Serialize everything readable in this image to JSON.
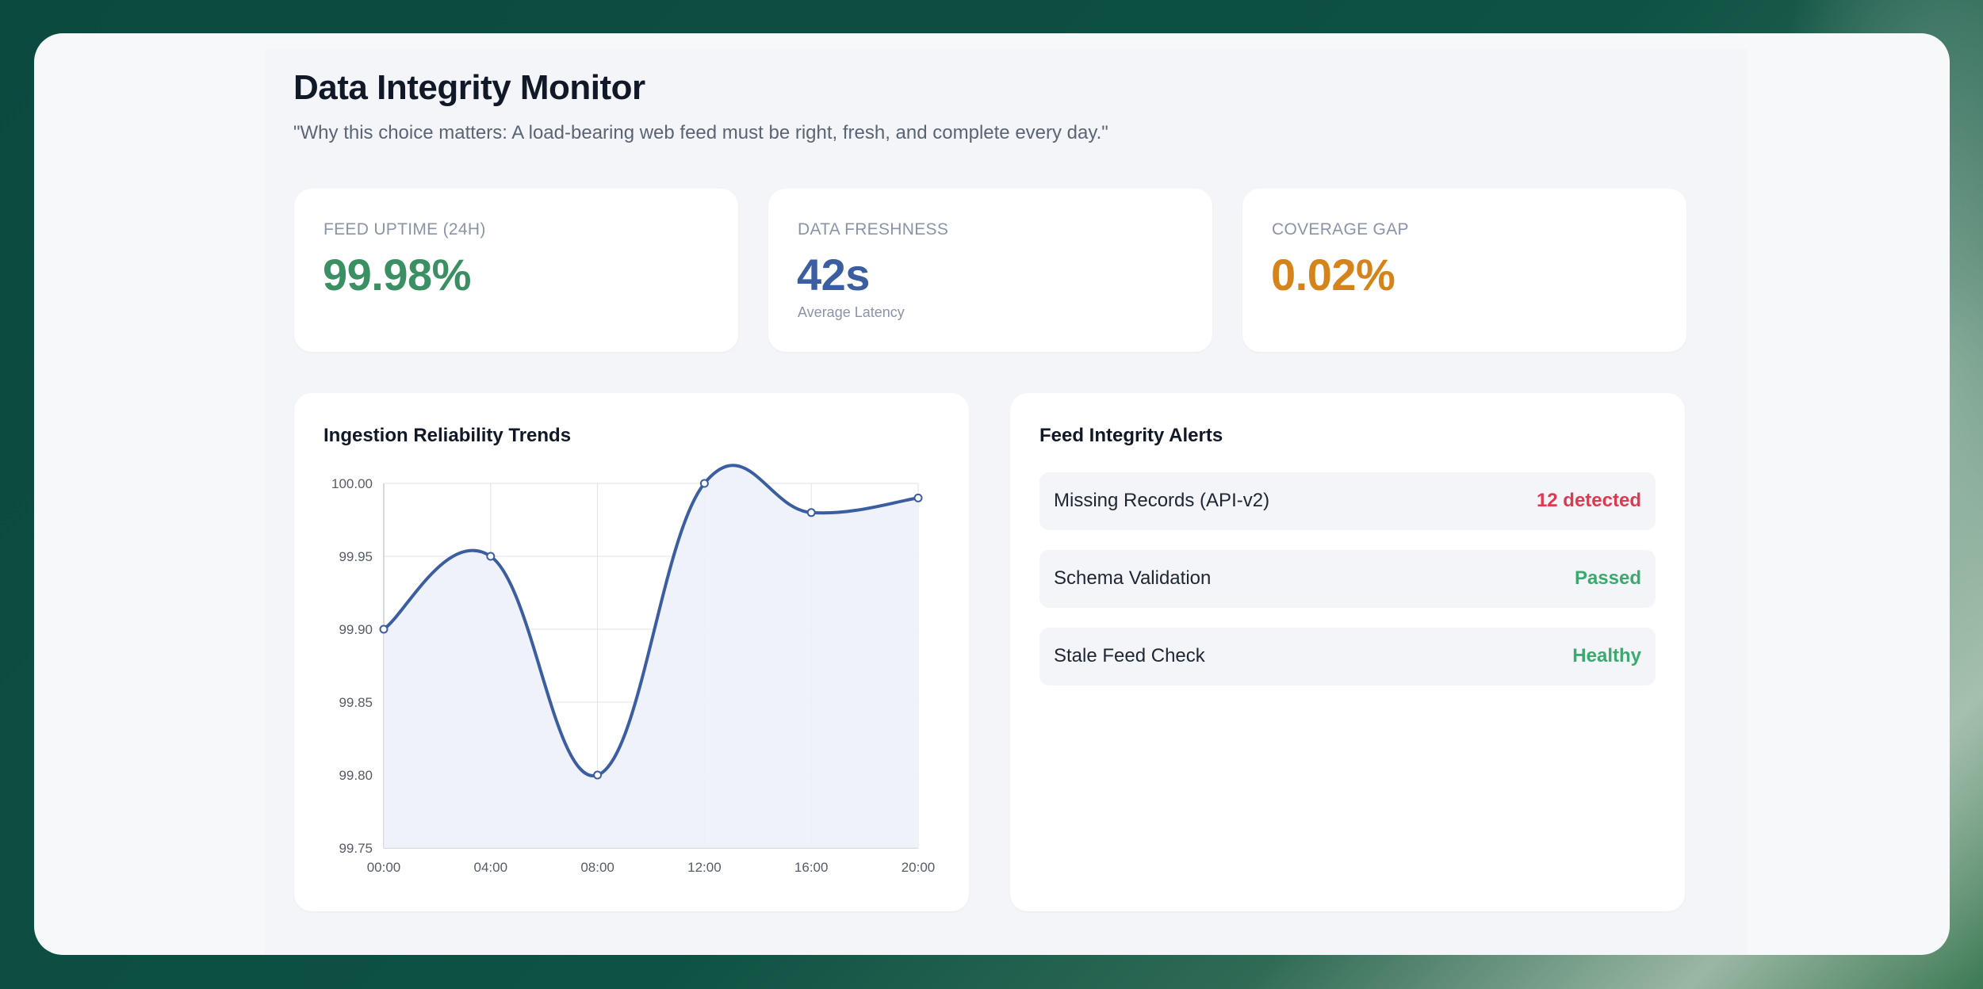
{
  "header": {
    "title": "Data Integrity Monitor",
    "subtitle": "\"Why this choice matters: A load-bearing web feed must be right, fresh, and complete every day.\""
  },
  "kpis": [
    {
      "label": "FEED UPTIME (24H)",
      "value": "99.98%",
      "sub": "",
      "color": "#3a8f63"
    },
    {
      "label": "DATA FRESHNESS",
      "value": "42s",
      "sub": "Average Latency",
      "color": "#3b5ea0"
    },
    {
      "label": "COVERAGE GAP",
      "value": "0.02%",
      "sub": "",
      "color": "#d4841a"
    }
  ],
  "chart_card": {
    "title": "Ingestion Reliability Trends"
  },
  "chart_data": {
    "type": "line",
    "title": "Ingestion Reliability Trends",
    "x": [
      "00:00",
      "04:00",
      "08:00",
      "12:00",
      "16:00",
      "20:00"
    ],
    "series": [
      {
        "values": [
          99.9,
          99.95,
          99.8,
          100.0,
          99.98,
          99.99
        ]
      }
    ],
    "yticks": [
      "99.75",
      "99.80",
      "99.85",
      "99.90",
      "99.95",
      "100.00"
    ],
    "ylim": [
      99.75,
      100.0
    ],
    "grid": true,
    "fill": true,
    "line_color": "#3b5ea0",
    "fill_color": "#eef1f8",
    "grid_color": "#dfe3e8"
  },
  "alerts_card": {
    "title": "Feed Integrity Alerts",
    "items": [
      {
        "name": "Missing Records (API-v2)",
        "status": "12 detected",
        "color": "#e0394f"
      },
      {
        "name": "Schema Validation",
        "status": "Passed",
        "color": "#3aaa6e"
      },
      {
        "name": "Stale Feed Check",
        "status": "Healthy",
        "color": "#3aaa6e"
      }
    ]
  }
}
